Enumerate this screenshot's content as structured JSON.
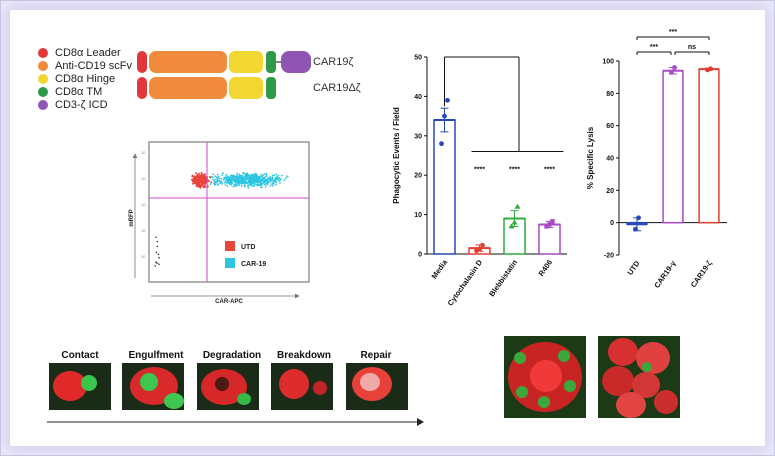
{
  "legend": [
    {
      "label": "CD8α Leader",
      "color": "#e0383a"
    },
    {
      "label": "Anti-CD19 scFv",
      "color": "#f08a3c"
    },
    {
      "label": "CD8α Hinge",
      "color": "#f2d632"
    },
    {
      "label": "CD8α TM",
      "color": "#2e9a48"
    },
    {
      "label": "CD3-ζ ICD",
      "color": "#8e55b4"
    }
  ],
  "constructs": [
    {
      "label": "CAR19ζ"
    },
    {
      "label": "CAR19Δζ"
    }
  ],
  "flow": {
    "xlabel": "CAR-APC",
    "ylabel": "mRFP",
    "legend": [
      {
        "label": "UTD",
        "color": "#e8453c"
      },
      {
        "label": "CAR-19",
        "color": "#2cc6e2"
      }
    ]
  },
  "chart_data": [
    {
      "type": "bar",
      "ylabel": "Phagocytic Events / Field",
      "ylim": [
        0,
        50
      ],
      "yticks": [
        "0",
        "10",
        "20",
        "30",
        "40",
        "50"
      ],
      "categories": [
        "Media",
        "Cytochalasin D",
        "Blebbistatin",
        "R406"
      ],
      "values": [
        34,
        1.5,
        9,
        7.5
      ],
      "errors": [
        3,
        0.8,
        2,
        0.8
      ],
      "points": [
        [
          28,
          35,
          39
        ],
        [
          0.8,
          1.2,
          2.2
        ],
        [
          7,
          8,
          12
        ],
        [
          7,
          7.5,
          8.3
        ]
      ],
      "colors": [
        "#2748b8",
        "#e04030",
        "#2eaa3e",
        "#a94ac8"
      ],
      "significance": [
        "****",
        "****",
        "****"
      ]
    },
    {
      "type": "bar",
      "ylabel": "% Specific Lysis",
      "ylim": [
        -20,
        100
      ],
      "yticks": [
        "-20",
        "0",
        "20",
        "40",
        "60",
        "80",
        "100"
      ],
      "categories": [
        "UTD",
        "CAR19-γ",
        "CAR19-ζ"
      ],
      "values": [
        -1,
        94,
        95
      ],
      "errors": [
        4,
        2,
        0.6
      ],
      "points": [
        [
          -4,
          3
        ],
        [
          93,
          96
        ],
        [
          94.5,
          95.2
        ]
      ],
      "colors": [
        "#2748b8",
        "#a94ac8",
        "#e04030"
      ],
      "significance": [
        "***",
        "***",
        "ns"
      ]
    }
  ],
  "stages": [
    "Contact",
    "Engulfment",
    "Degradation",
    "Breakdown",
    "Repair"
  ]
}
